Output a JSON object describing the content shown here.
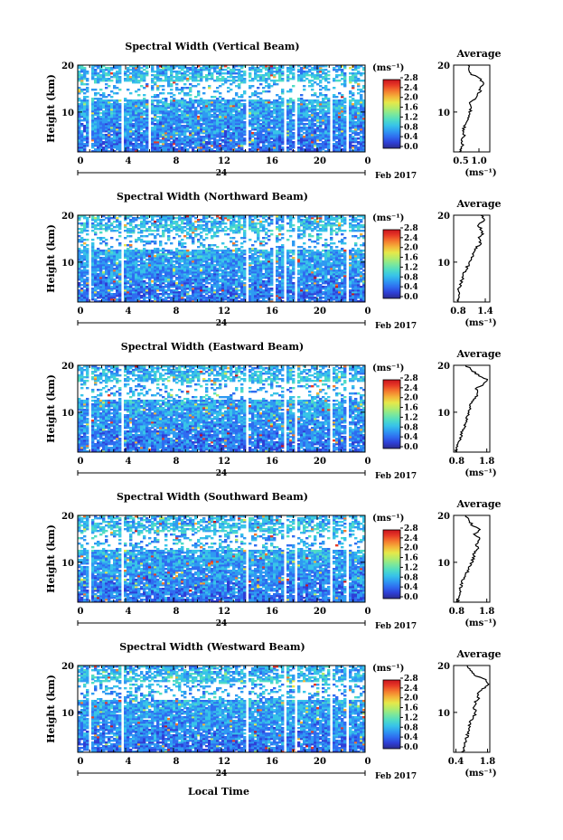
{
  "figure": {
    "xlabel": "Local Time",
    "date_label": "Feb 2017",
    "day_label": "24",
    "unit_label": "(ms⁻¹)",
    "avg_title": "Average",
    "avg_xlabel": "(ms⁻¹)",
    "ylabel": "Height (km)"
  },
  "colorbar": {
    "ticks": [
      "0.0",
      "0.4",
      "0.8",
      "1.2",
      "1.6",
      "2.0",
      "2.4",
      "2.8"
    ],
    "colors": [
      "#2b2b8c",
      "#2e3fd6",
      "#2f6cf0",
      "#2f9af2",
      "#38c4e8",
      "#50dcc4",
      "#7ee89a",
      "#b4ec6a",
      "#e6e84a",
      "#f4b43a",
      "#f47a2e",
      "#e83a26",
      "#c8141e"
    ]
  },
  "chart_data": [
    {
      "type": "heatmap",
      "title": "Spectral Width (Vertical Beam)",
      "x_ticks": [
        "0",
        "4",
        "8",
        "12",
        "16",
        "20",
        "0"
      ],
      "y_ticks": [
        "20",
        "10"
      ],
      "xlim": [
        0,
        24
      ],
      "ylim": [
        1.5,
        20
      ],
      "colorbar_range": [
        0.0,
        3.0
      ],
      "data_gaps_hours": [
        [
          0.9,
          1.1
        ],
        [
          3.6,
          3.8
        ],
        [
          5.8,
          6.0
        ],
        [
          14.0,
          14.2
        ],
        [
          17.3,
          17.5
        ],
        [
          18.1,
          18.3
        ],
        [
          21.0,
          21.2
        ],
        [
          22.4,
          22.6
        ]
      ],
      "average_profile": {
        "x_ticks": [
          "0.5",
          "1.0"
        ],
        "xlim": [
          0.3,
          1.3
        ],
        "height_km": [
          1.5,
          2,
          3,
          4,
          5,
          6,
          7,
          8,
          9,
          10,
          11,
          12,
          13,
          14,
          15,
          16,
          17,
          18,
          19,
          20
        ],
        "value": [
          0.45,
          0.5,
          0.55,
          0.5,
          0.6,
          0.55,
          0.6,
          0.65,
          0.7,
          0.75,
          0.8,
          0.75,
          0.9,
          1.0,
          1.05,
          1.1,
          1.05,
          0.8,
          0.75,
          0.7
        ]
      }
    },
    {
      "type": "heatmap",
      "title": "Spectral Width (Northward Beam)",
      "x_ticks": [
        "0",
        "4",
        "8",
        "12",
        "16",
        "20",
        "0"
      ],
      "y_ticks": [
        "20",
        "10"
      ],
      "xlim": [
        0,
        24
      ],
      "ylim": [
        1.5,
        20
      ],
      "colorbar_range": [
        0.0,
        3.0
      ],
      "data_gaps_hours": [
        [
          0.9,
          1.1
        ],
        [
          3.6,
          3.8
        ],
        [
          14.0,
          14.2
        ],
        [
          16.3,
          16.5
        ],
        [
          17.3,
          17.5
        ],
        [
          18.1,
          18.3
        ],
        [
          22.4,
          22.6
        ]
      ],
      "average_profile": {
        "x_ticks": [
          "0.8",
          "1.4"
        ],
        "xlim": [
          0.7,
          1.5
        ],
        "height_km": [
          1.5,
          2,
          3,
          4,
          5,
          6,
          7,
          8,
          9,
          10,
          11,
          12,
          13,
          14,
          15,
          16,
          17,
          18,
          19,
          20
        ],
        "value": [
          0.78,
          0.8,
          0.82,
          0.8,
          0.85,
          0.88,
          0.9,
          0.95,
          1.0,
          1.05,
          1.1,
          1.15,
          1.2,
          1.3,
          1.25,
          1.35,
          1.3,
          1.25,
          1.4,
          1.3
        ]
      }
    },
    {
      "type": "heatmap",
      "title": "Spectral Width (Eastward Beam)",
      "x_ticks": [
        "0",
        "4",
        "8",
        "12",
        "16",
        "20",
        "0"
      ],
      "y_ticks": [
        "20",
        "10"
      ],
      "xlim": [
        0,
        24
      ],
      "ylim": [
        1.5,
        20
      ],
      "colorbar_range": [
        0.0,
        3.0
      ],
      "data_gaps_hours": [
        [
          0.9,
          1.1
        ],
        [
          3.6,
          3.8
        ],
        [
          14.0,
          14.2
        ],
        [
          17.3,
          17.5
        ],
        [
          18.1,
          18.3
        ],
        [
          21.0,
          21.2
        ],
        [
          22.4,
          22.6
        ]
      ],
      "average_profile": {
        "x_ticks": [
          "0.8",
          "1.8"
        ],
        "xlim": [
          0.7,
          1.9
        ],
        "height_km": [
          1.5,
          2,
          3,
          4,
          5,
          6,
          7,
          8,
          9,
          10,
          11,
          12,
          13,
          14,
          15,
          16,
          17,
          18,
          19,
          20
        ],
        "value": [
          0.8,
          0.78,
          0.85,
          0.9,
          0.95,
          1.0,
          1.05,
          1.1,
          1.15,
          1.2,
          1.25,
          1.3,
          1.4,
          1.5,
          1.45,
          1.7,
          1.8,
          1.5,
          1.3,
          1.1
        ]
      }
    },
    {
      "type": "heatmap",
      "title": "Spectral Width (Southward Beam)",
      "x_ticks": [
        "0",
        "4",
        "8",
        "12",
        "16",
        "20",
        "0"
      ],
      "y_ticks": [
        "20",
        "10"
      ],
      "xlim": [
        0,
        24
      ],
      "ylim": [
        1.5,
        20
      ],
      "colorbar_range": [
        0.0,
        3.0
      ],
      "data_gaps_hours": [
        [
          0.9,
          1.1
        ],
        [
          3.6,
          3.8
        ],
        [
          14.0,
          14.2
        ],
        [
          17.3,
          17.5
        ],
        [
          18.1,
          18.3
        ],
        [
          21.0,
          21.2
        ],
        [
          22.4,
          22.6
        ]
      ],
      "average_profile": {
        "x_ticks": [
          "0.8",
          "1.8"
        ],
        "xlim": [
          0.7,
          1.9
        ],
        "height_km": [
          1.5,
          2,
          3,
          4,
          5,
          6,
          7,
          8,
          9,
          10,
          11,
          12,
          13,
          14,
          15,
          16,
          17,
          18,
          19,
          20
        ],
        "value": [
          0.8,
          0.85,
          0.88,
          0.9,
          0.95,
          1.0,
          1.1,
          1.15,
          1.2,
          1.3,
          1.35,
          1.4,
          1.5,
          1.45,
          1.55,
          1.4,
          1.6,
          1.3,
          1.2,
          1.1
        ]
      }
    },
    {
      "type": "heatmap",
      "title": "Spectral Width (Westward Beam)",
      "x_ticks": [
        "0",
        "4",
        "8",
        "12",
        "16",
        "20",
        "0"
      ],
      "y_ticks": [
        "20",
        "10"
      ],
      "xlim": [
        0,
        24
      ],
      "ylim": [
        1.5,
        20
      ],
      "colorbar_range": [
        0.0,
        3.0
      ],
      "data_gaps_hours": [
        [
          0.9,
          1.1
        ],
        [
          3.6,
          3.8
        ],
        [
          14.0,
          14.2
        ],
        [
          17.3,
          17.5
        ],
        [
          18.1,
          18.3
        ],
        [
          21.0,
          21.2
        ],
        [
          22.4,
          22.6
        ]
      ],
      "average_profile": {
        "x_ticks": [
          "0.4",
          "1.8"
        ],
        "xlim": [
          0.3,
          1.9
        ],
        "height_km": [
          1.5,
          2,
          3,
          4,
          5,
          6,
          7,
          8,
          9,
          10,
          11,
          12,
          13,
          14,
          15,
          16,
          17,
          18,
          19,
          20
        ],
        "value": [
          0.7,
          0.75,
          0.8,
          0.85,
          0.9,
          0.95,
          1.0,
          1.05,
          1.15,
          1.3,
          1.2,
          1.25,
          1.4,
          1.35,
          1.6,
          1.8,
          1.7,
          1.2,
          1.0,
          0.9
        ]
      }
    }
  ]
}
